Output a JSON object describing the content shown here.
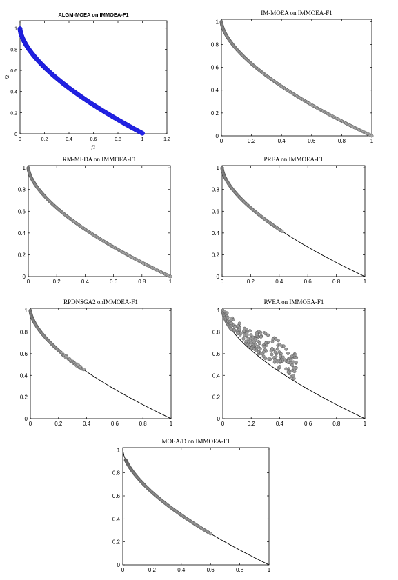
{
  "page": {
    "stray_mark": "."
  },
  "chart_data": [
    {
      "id": "algm",
      "type": "scatter",
      "title": "ALGM-MOEA on IMMOEA-F1",
      "xlabel": "f1",
      "ylabel": "f2",
      "xlim": [
        0,
        1.2
      ],
      "ylim": [
        0,
        1.07
      ],
      "xticks": [
        "0",
        "0.2",
        "0.4",
        "0.6",
        "0.8",
        "1",
        "1.2"
      ],
      "yticks": [
        "0",
        "0.2",
        "0.4",
        "0.6",
        "0.8",
        "1"
      ],
      "true_front": false,
      "marker": "blue-filled",
      "points_x_range": [
        0,
        1.0
      ],
      "grid": false,
      "legend": "none"
    },
    {
      "id": "immoea",
      "type": "scatter",
      "title": "IM-MOEA on IMMOEA-F1",
      "xlabel": "",
      "ylabel": "",
      "xlim": [
        0,
        1
      ],
      "ylim": [
        0,
        1.02
      ],
      "xticks": [
        "0",
        "0.2",
        "0.4",
        "0.6",
        "0.8",
        "1"
      ],
      "yticks": [
        "0",
        "0.2",
        "0.4",
        "0.6",
        "0.8",
        "1"
      ],
      "true_front": true,
      "marker": "grey-circle",
      "points_x_range": [
        0,
        1.0
      ],
      "grid": false,
      "legend": "none"
    },
    {
      "id": "rmmeda",
      "type": "scatter",
      "title": "RM-MEDA on IMMOEA-F1",
      "xlabel": "",
      "ylabel": "",
      "xlim": [
        0,
        1
      ],
      "ylim": [
        0,
        1.02
      ],
      "xticks": [
        "0",
        "0.2",
        "0.4",
        "0.6",
        "0.8",
        "1"
      ],
      "yticks": [
        "0",
        "0.2",
        "0.4",
        "0.6",
        "0.8",
        "1"
      ],
      "true_front": true,
      "marker": "grey-circle",
      "points_x_range": [
        0,
        1.0
      ],
      "grid": false,
      "legend": "none"
    },
    {
      "id": "prea",
      "type": "scatter",
      "title": "PREA on IMMOEA-F1",
      "xlabel": "",
      "ylabel": "",
      "xlim": [
        0,
        1
      ],
      "ylim": [
        0,
        1.02
      ],
      "xticks": [
        "0",
        "0.2",
        "0.4",
        "0.6",
        "0.8",
        "1"
      ],
      "yticks": [
        "0",
        "0.2",
        "0.4",
        "0.6",
        "0.8",
        "1"
      ],
      "true_front": true,
      "marker": "grey-circle",
      "points_x_range": [
        0,
        0.42
      ],
      "grid": false,
      "legend": "none"
    },
    {
      "id": "rpdnsga2",
      "type": "scatter",
      "title": "RPDNSGA2 onIMMOEA-F1",
      "xlabel": "",
      "ylabel": "",
      "xlim": [
        0,
        1
      ],
      "ylim": [
        0,
        1.02
      ],
      "xticks": [
        "0",
        "0.2",
        "0.4",
        "0.6",
        "0.8",
        "1"
      ],
      "yticks": [
        "0",
        "0.2",
        "0.4",
        "0.6",
        "0.8",
        "1"
      ],
      "true_front": true,
      "marker": "grey-circle",
      "points_x_range": [
        0,
        0.38
      ],
      "grid": false,
      "legend": "none"
    },
    {
      "id": "rvea",
      "type": "scatter",
      "title": "RVEA on IMMOEA-F1",
      "xlabel": "",
      "ylabel": "",
      "xlim": [
        0,
        1
      ],
      "ylim": [
        0,
        1.02
      ],
      "xticks": [
        "0",
        "0.2",
        "0.4",
        "0.6",
        "0.8",
        "1"
      ],
      "yticks": [
        "0",
        "0.2",
        "0.4",
        "0.6",
        "0.8",
        "1"
      ],
      "true_front": true,
      "marker": "grey-circle",
      "points_x_range": [
        0,
        0.52
      ],
      "scattered": true,
      "grid": false,
      "legend": "none"
    },
    {
      "id": "moead",
      "type": "scatter",
      "title": "MOEA/D on IMMOEA-F1",
      "xlabel": "",
      "ylabel": "",
      "xlim": [
        0,
        1
      ],
      "ylim": [
        0,
        1.02
      ],
      "xticks": [
        "0",
        "0.2",
        "0.4",
        "0.6",
        "0.8",
        "1"
      ],
      "yticks": [
        "0",
        "0.2",
        "0.4",
        "0.6",
        "0.8",
        "1"
      ],
      "true_front": true,
      "marker": "grey-circle",
      "points_x_range": [
        0.02,
        0.6
      ],
      "grid": false,
      "legend": "none"
    }
  ]
}
